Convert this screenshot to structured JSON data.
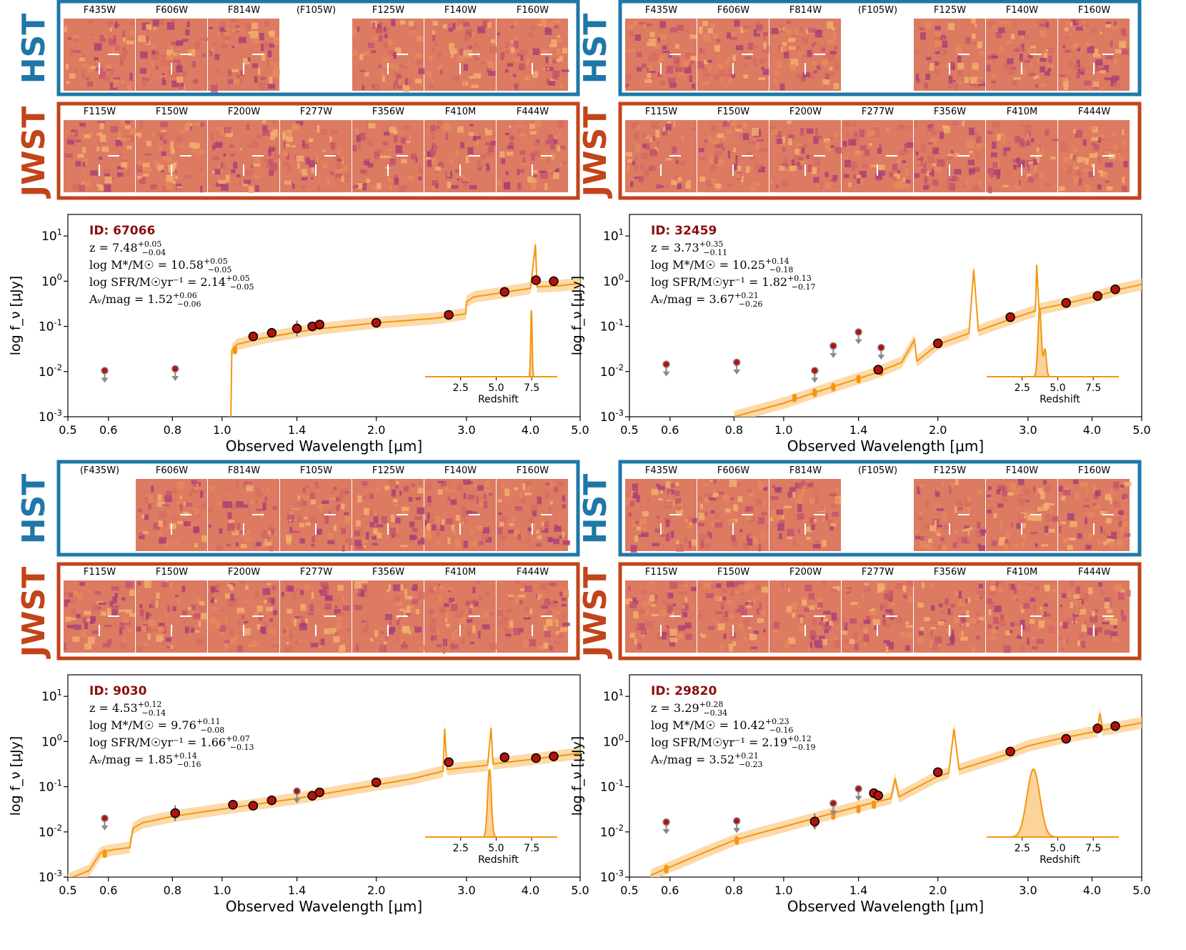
{
  "instrument_labels": {
    "hst": "HST",
    "jwst": "JWST"
  },
  "colors": {
    "hst_frame": "#1f77a8",
    "jwst_frame": "#c2441a",
    "model": "#f5960f",
    "model_band": "#fbd39b",
    "point_fill": "#b5120f",
    "id_text": "#8b0f0f",
    "upper_limit": "#8a8a8a"
  },
  "axes": {
    "xlabel": "Observed Wavelength [μm]",
    "ylabel": "log f_ν [μJy]",
    "xticks": [
      "0.5",
      "0.6",
      "0.8",
      "1.0",
      "1.4",
      "2.0",
      "3.0",
      "4.0",
      "5.0"
    ],
    "yticks": [
      "10^-3",
      "10^-2",
      "10^-1",
      "10^0",
      "10^1"
    ],
    "inset_xticks": [
      "2.5",
      "5.0",
      "7.5"
    ],
    "inset_label": "Redshift"
  },
  "panels": [
    {
      "id_label": "ID: 67066",
      "z": "7.48",
      "z_up": "+0.05",
      "z_dn": "−0.04",
      "mass": "10.58",
      "mass_up": "+0.05",
      "mass_dn": "−0.05",
      "sfr": "2.14",
      "sfr_up": "+0.05",
      "sfr_dn": "−0.05",
      "av": "1.52",
      "av_up": "+0.06",
      "av_dn": "−0.06",
      "hst_filters": [
        "F435W",
        "F606W",
        "F814W",
        "(F105W)",
        "F125W",
        "F140W",
        "F160W"
      ],
      "jwst_filters": [
        "F115W",
        "F150W",
        "F200W",
        "F277W",
        "F356W",
        "F410M",
        "F444W"
      ]
    },
    {
      "id_label": "ID: 32459",
      "z": "3.73",
      "z_up": "+0.35",
      "z_dn": "−0.11",
      "mass": "10.25",
      "mass_up": "+0.14",
      "mass_dn": "−0.18",
      "sfr": "1.82",
      "sfr_up": "+0.13",
      "sfr_dn": "−0.17",
      "av": "3.67",
      "av_up": "+0.21",
      "av_dn": "−0.26",
      "hst_filters": [
        "F435W",
        "F606W",
        "F814W",
        "(F105W)",
        "F125W",
        "F140W",
        "F160W"
      ],
      "jwst_filters": [
        "F115W",
        "F150W",
        "F200W",
        "F277W",
        "F356W",
        "F410M",
        "F444W"
      ]
    },
    {
      "id_label": "ID: 9030",
      "z": "4.53",
      "z_up": "+0.12",
      "z_dn": "−0.14",
      "mass": "9.76",
      "mass_up": "+0.11",
      "mass_dn": "−0.08",
      "sfr": "1.66",
      "sfr_up": "+0.07",
      "sfr_dn": "−0.13",
      "av": "1.85",
      "av_up": "+0.14",
      "av_dn": "−0.16",
      "hst_filters": [
        "(F435W)",
        "F606W",
        "F814W",
        "F105W",
        "F125W",
        "F140W",
        "F160W"
      ],
      "jwst_filters": [
        "F115W",
        "F150W",
        "F200W",
        "F277W",
        "F356W",
        "F410M",
        "F444W"
      ]
    },
    {
      "id_label": "ID: 29820",
      "z": "3.29",
      "z_up": "+0.28",
      "z_dn": "−0.34",
      "mass": "10.42",
      "mass_up": "+0.23",
      "mass_dn": "−0.16",
      "sfr": "2.19",
      "sfr_up": "+0.12",
      "sfr_dn": "−0.19",
      "av": "3.52",
      "av_up": "+0.21",
      "av_dn": "−0.23",
      "hst_filters": [
        "F435W",
        "F606W",
        "F814W",
        "(F105W)",
        "F125W",
        "F140W",
        "F160W"
      ],
      "jwst_filters": [
        "F115W",
        "F150W",
        "F200W",
        "F277W",
        "F356W",
        "F410M",
        "F444W"
      ]
    }
  ],
  "chart_data": [
    {
      "type": "scatter",
      "title": "ID: 67066",
      "xlabel": "Observed Wavelength [μm]",
      "ylabel": "log f_ν [μJy]",
      "xscale": "log",
      "yscale": "log",
      "xlim": [
        0.5,
        5.0
      ],
      "ylim": [
        0.001,
        30
      ],
      "points": [
        {
          "x": 1.15,
          "y": 0.06
        },
        {
          "x": 1.25,
          "y": 0.072
        },
        {
          "x": 1.4,
          "y": 0.09,
          "err": true
        },
        {
          "x": 1.5,
          "y": 0.1
        },
        {
          "x": 1.55,
          "y": 0.11
        },
        {
          "x": 2.0,
          "y": 0.12
        },
        {
          "x": 2.77,
          "y": 0.18
        },
        {
          "x": 3.56,
          "y": 0.58
        },
        {
          "x": 4.1,
          "y": 1.05
        },
        {
          "x": 4.44,
          "y": 1.0
        }
      ],
      "upper_limits": [
        {
          "x": 0.59,
          "y": 0.0105
        },
        {
          "x": 0.81,
          "y": 0.0115
        }
      ],
      "model": [
        [
          1.04,
          0.0009
        ],
        [
          1.045,
          0.03
        ],
        [
          1.07,
          0.04
        ],
        [
          1.2,
          0.055
        ],
        [
          1.5,
          0.085
        ],
        [
          2.0,
          0.12
        ],
        [
          2.6,
          0.15
        ],
        [
          2.99,
          0.19
        ],
        [
          3.0,
          0.35
        ],
        [
          3.1,
          0.45
        ],
        [
          3.5,
          0.55
        ],
        [
          4.0,
          0.7
        ],
        [
          4.09,
          6.5
        ],
        [
          4.12,
          0.75
        ],
        [
          4.6,
          0.8
        ],
        [
          5.0,
          0.9
        ]
      ],
      "model_points": [
        {
          "x": 1.06,
          "y": 0.03
        }
      ],
      "pz": {
        "xlim": [
          0,
          9.3
        ],
        "peak": 7.48,
        "width": 0.05
      }
    },
    {
      "type": "scatter",
      "title": "ID: 32459",
      "xlabel": "Observed Wavelength [μm]",
      "ylabel": "log f_ν [μJy]",
      "xscale": "log",
      "yscale": "log",
      "xlim": [
        0.5,
        5.0
      ],
      "ylim": [
        0.001,
        30
      ],
      "points": [
        {
          "x": 1.53,
          "y": 0.011
        },
        {
          "x": 2.0,
          "y": 0.042
        },
        {
          "x": 2.77,
          "y": 0.16
        },
        {
          "x": 3.56,
          "y": 0.33
        },
        {
          "x": 4.1,
          "y": 0.47
        },
        {
          "x": 4.44,
          "y": 0.66
        }
      ],
      "upper_limits": [
        {
          "x": 0.59,
          "y": 0.0145
        },
        {
          "x": 0.81,
          "y": 0.016
        },
        {
          "x": 1.15,
          "y": 0.0105
        },
        {
          "x": 1.25,
          "y": 0.037
        },
        {
          "x": 1.4,
          "y": 0.075
        },
        {
          "x": 1.55,
          "y": 0.034
        }
      ],
      "model": [
        [
          0.8,
          0.001
        ],
        [
          1.0,
          0.002
        ],
        [
          1.2,
          0.004
        ],
        [
          1.5,
          0.009
        ],
        [
          1.7,
          0.016
        ],
        [
          1.8,
          0.05
        ],
        [
          1.82,
          0.017
        ],
        [
          2.0,
          0.04
        ],
        [
          2.3,
          0.07
        ],
        [
          2.35,
          1.8
        ],
        [
          2.4,
          0.08
        ],
        [
          2.8,
          0.15
        ],
        [
          3.1,
          0.22
        ],
        [
          3.12,
          2.3
        ],
        [
          3.15,
          0.24
        ],
        [
          3.6,
          0.33
        ],
        [
          4.1,
          0.47
        ],
        [
          4.5,
          0.65
        ],
        [
          5.0,
          0.85
        ]
      ],
      "model_points": [
        {
          "x": 1.05,
          "y": 0.0026
        },
        {
          "x": 1.15,
          "y": 0.0034
        },
        {
          "x": 1.25,
          "y": 0.0045
        },
        {
          "x": 1.4,
          "y": 0.0068
        },
        {
          "x": 1.55,
          "y": 0.01
        }
      ],
      "pz": {
        "xlim": [
          0,
          9.3
        ],
        "peak": 3.73,
        "width": 0.12,
        "secondary_peak": 4.1
      }
    },
    {
      "type": "scatter",
      "title": "ID: 9030",
      "xlabel": "Observed Wavelength [μm]",
      "ylabel": "log f_ν [μJy]",
      "xscale": "log",
      "yscale": "log",
      "xlim": [
        0.5,
        5.0
      ],
      "ylim": [
        0.001,
        30
      ],
      "points": [
        {
          "x": 0.81,
          "y": 0.026,
          "err": true
        },
        {
          "x": 1.05,
          "y": 0.04
        },
        {
          "x": 1.15,
          "y": 0.038
        },
        {
          "x": 1.25,
          "y": 0.05
        },
        {
          "x": 1.5,
          "y": 0.063
        },
        {
          "x": 1.55,
          "y": 0.075
        },
        {
          "x": 2.0,
          "y": 0.125
        },
        {
          "x": 2.77,
          "y": 0.35
        },
        {
          "x": 3.56,
          "y": 0.45
        },
        {
          "x": 4.1,
          "y": 0.43
        },
        {
          "x": 4.44,
          "y": 0.47
        }
      ],
      "upper_limits": [
        {
          "x": 0.59,
          "y": 0.02
        },
        {
          "x": 1.4,
          "y": 0.08
        }
      ],
      "model": [
        [
          0.5,
          0.0009
        ],
        [
          0.55,
          0.0014
        ],
        [
          0.58,
          0.0035
        ],
        [
          0.61,
          0.004
        ],
        [
          0.66,
          0.0045
        ],
        [
          0.67,
          0.012
        ],
        [
          0.7,
          0.016
        ],
        [
          0.8,
          0.022
        ],
        [
          1.0,
          0.032
        ],
        [
          1.4,
          0.055
        ],
        [
          2.0,
          0.11
        ],
        [
          2.35,
          0.15
        ],
        [
          2.7,
          0.22
        ],
        [
          2.72,
          1.9
        ],
        [
          2.75,
          0.24
        ],
        [
          3.3,
          0.3
        ],
        [
          3.35,
          2.0
        ],
        [
          3.38,
          0.32
        ],
        [
          4.0,
          0.4
        ],
        [
          5.0,
          0.55
        ]
      ],
      "model_points": [
        {
          "x": 0.59,
          "y": 0.0033
        }
      ],
      "pz": {
        "xlim": [
          0,
          9.3
        ],
        "peak": 4.53,
        "width": 0.13
      }
    },
    {
      "type": "scatter",
      "title": "ID: 29820",
      "xlabel": "Observed Wavelength [μm]",
      "ylabel": "log f_ν [μJy]",
      "xscale": "log",
      "yscale": "log",
      "xlim": [
        0.5,
        5.0
      ],
      "ylim": [
        0.001,
        30
      ],
      "points": [
        {
          "x": 1.15,
          "y": 0.017,
          "err": true
        },
        {
          "x": 1.5,
          "y": 0.072
        },
        {
          "x": 1.53,
          "y": 0.064
        },
        {
          "x": 2.0,
          "y": 0.21
        },
        {
          "x": 2.77,
          "y": 0.6
        },
        {
          "x": 3.56,
          "y": 1.15
        },
        {
          "x": 4.1,
          "y": 1.95
        },
        {
          "x": 4.44,
          "y": 2.2
        }
      ],
      "upper_limits": [
        {
          "x": 0.59,
          "y": 0.0165
        },
        {
          "x": 0.81,
          "y": 0.0175
        },
        {
          "x": 1.25,
          "y": 0.043
        },
        {
          "x": 1.4,
          "y": 0.09
        }
      ],
      "model": [
        [
          0.55,
          0.0011
        ],
        [
          0.7,
          0.0035
        ],
        [
          0.8,
          0.0065
        ],
        [
          0.9,
          0.0095
        ],
        [
          1.0,
          0.013
        ],
        [
          1.2,
          0.023
        ],
        [
          1.5,
          0.045
        ],
        [
          1.62,
          0.055
        ],
        [
          1.65,
          0.15
        ],
        [
          1.68,
          0.06
        ],
        [
          2.0,
          0.17
        ],
        [
          2.1,
          0.2
        ],
        [
          2.15,
          1.9
        ],
        [
          2.2,
          0.24
        ],
        [
          2.7,
          0.5
        ],
        [
          3.0,
          0.8
        ],
        [
          3.5,
          1.2
        ],
        [
          4.1,
          1.7
        ],
        [
          4.14,
          4.2
        ],
        [
          4.2,
          1.8
        ],
        [
          5.0,
          2.6
        ]
      ],
      "model_points": [
        {
          "x": 0.59,
          "y": 0.0015
        },
        {
          "x": 0.81,
          "y": 0.0065
        },
        {
          "x": 1.15,
          "y": 0.015
        },
        {
          "x": 1.25,
          "y": 0.023
        },
        {
          "x": 1.4,
          "y": 0.032
        },
        {
          "x": 1.5,
          "y": 0.04
        }
      ],
      "pz": {
        "xlim": [
          0,
          9.3
        ],
        "peak": 3.29,
        "width": 0.45
      }
    }
  ]
}
